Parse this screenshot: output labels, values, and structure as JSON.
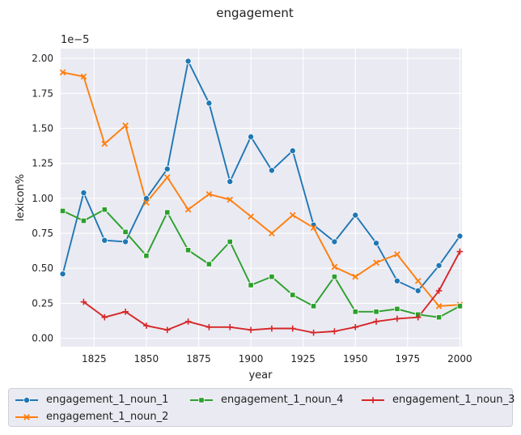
{
  "chart_data": {
    "type": "line",
    "title": "engagement",
    "xlabel": "year",
    "ylabel": "lexicon%",
    "y_exponent_label": "1e−5",
    "xlim": [
      1809,
      2001
    ],
    "ylim": [
      -0.06,
      2.07
    ],
    "x_ticks": [
      1825,
      1850,
      1875,
      1900,
      1925,
      1950,
      1975,
      2000
    ],
    "y_ticks": [
      0.0,
      0.25,
      0.5,
      0.75,
      1.0,
      1.25,
      1.5,
      1.75,
      2.0
    ],
    "y_tick_labels": [
      "0.00",
      "0.25",
      "0.50",
      "0.75",
      "1.00",
      "1.25",
      "1.50",
      "1.75",
      "2.00"
    ],
    "grid": true,
    "legend_position": "bottom",
    "background": "#eaeaf2",
    "series": [
      {
        "name": "engagement_1_noun_1",
        "color": "#1f77b4",
        "marker": "circle",
        "points": [
          [
            1810,
            0.46
          ],
          [
            1820,
            1.04
          ],
          [
            1830,
            0.7
          ],
          [
            1840,
            0.69
          ],
          [
            1850,
            1.0
          ],
          [
            1860,
            1.21
          ],
          [
            1870,
            1.98
          ],
          [
            1880,
            1.68
          ],
          [
            1890,
            1.12
          ],
          [
            1900,
            1.44
          ],
          [
            1910,
            1.2
          ],
          [
            1920,
            1.34
          ],
          [
            1930,
            0.81
          ],
          [
            1940,
            0.69
          ],
          [
            1950,
            0.88
          ],
          [
            1960,
            0.68
          ],
          [
            1970,
            0.41
          ],
          [
            1980,
            0.34
          ],
          [
            1990,
            0.52
          ],
          [
            2000,
            0.73
          ]
        ]
      },
      {
        "name": "engagement_1_noun_2",
        "color": "#ff7f0e",
        "marker": "x",
        "points": [
          [
            1810,
            1.9
          ],
          [
            1820,
            1.87
          ],
          [
            1830,
            1.39
          ],
          [
            1840,
            1.52
          ],
          [
            1850,
            0.97
          ],
          [
            1860,
            1.15
          ],
          [
            1870,
            0.92
          ],
          [
            1880,
            1.03
          ],
          [
            1890,
            0.99
          ],
          [
            1900,
            0.87
          ],
          [
            1910,
            0.75
          ],
          [
            1920,
            0.88
          ],
          [
            1930,
            0.79
          ],
          [
            1940,
            0.51
          ],
          [
            1950,
            0.44
          ],
          [
            1960,
            0.54
          ],
          [
            1970,
            0.6
          ],
          [
            1980,
            0.41
          ],
          [
            1990,
            0.23
          ],
          [
            2000,
            0.24
          ]
        ]
      },
      {
        "name": "engagement_1_noun_4",
        "color": "#2ca02c",
        "marker": "square",
        "points": [
          [
            1810,
            0.91
          ],
          [
            1820,
            0.84
          ],
          [
            1830,
            0.92
          ],
          [
            1840,
            0.76
          ],
          [
            1850,
            0.59
          ],
          [
            1860,
            0.9
          ],
          [
            1870,
            0.63
          ],
          [
            1880,
            0.53
          ],
          [
            1890,
            0.69
          ],
          [
            1900,
            0.38
          ],
          [
            1910,
            0.44
          ],
          [
            1920,
            0.31
          ],
          [
            1930,
            0.23
          ],
          [
            1940,
            0.44
          ],
          [
            1950,
            0.19
          ],
          [
            1960,
            0.19
          ],
          [
            1970,
            0.21
          ],
          [
            1980,
            0.17
          ],
          [
            1990,
            0.15
          ],
          [
            2000,
            0.23
          ]
        ]
      },
      {
        "name": "engagement_1_noun_3",
        "color": "#d62728",
        "marker": "plus",
        "points": [
          [
            1820,
            0.26
          ],
          [
            1830,
            0.15
          ],
          [
            1840,
            0.19
          ],
          [
            1850,
            0.09
          ],
          [
            1860,
            0.06
          ],
          [
            1870,
            0.12
          ],
          [
            1880,
            0.08
          ],
          [
            1890,
            0.08
          ],
          [
            1900,
            0.06
          ],
          [
            1910,
            0.07
          ],
          [
            1920,
            0.07
          ],
          [
            1930,
            0.04
          ],
          [
            1940,
            0.05
          ],
          [
            1950,
            0.08
          ],
          [
            1960,
            0.12
          ],
          [
            1970,
            0.14
          ],
          [
            1980,
            0.15
          ],
          [
            1990,
            0.34
          ],
          [
            2000,
            0.62
          ]
        ]
      }
    ]
  }
}
